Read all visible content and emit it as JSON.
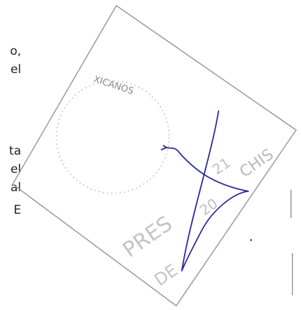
{
  "left_text": {
    "lines": [
      "o,",
      "el",
      "ta",
      "el",
      "al",
      "E"
    ]
  },
  "stamp": {
    "arc_text": "XICANOS",
    "year_a": "21",
    "year_b": "20",
    "state": "CHIS",
    "word": "PRES",
    "prefix": "DE"
  }
}
